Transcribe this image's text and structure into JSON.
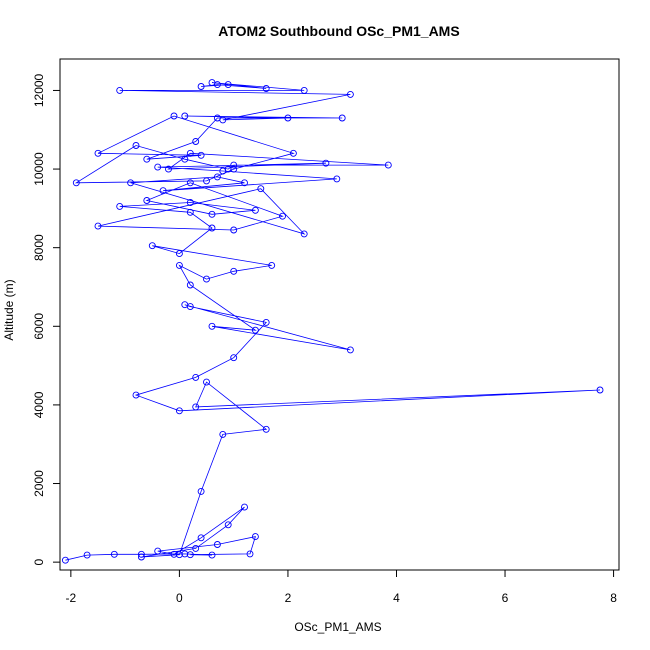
{
  "chart_data": {
    "type": "line",
    "title": "ATOM2 Southbound OSc_PM1_AMS",
    "xlabel": "OSc_PM1_AMS",
    "ylabel": "Altitude (m)",
    "xlim": [
      -2.2,
      8.1
    ],
    "ylim": [
      -200,
      12800
    ],
    "xticks": [
      -2,
      0,
      2,
      4,
      6,
      8
    ],
    "yticks": [
      0,
      2000,
      4000,
      6000,
      8000,
      10000,
      12000
    ],
    "xtick_labels": [
      "-2",
      "0",
      "2",
      "4",
      "6",
      "8"
    ],
    "ytick_labels": [
      "0",
      "2000",
      "4000",
      "6000",
      "8000",
      "10000",
      "12000"
    ],
    "grid": false,
    "marker": "open-circle",
    "series_color": "#0000ff",
    "series": [
      {
        "x": [
          -2.1,
          -1.7,
          -1.2,
          -0.7,
          0.1,
          0.6,
          0.2,
          1.3,
          1.4,
          0.7,
          -0.4,
          -0.1,
          0.4,
          1.2,
          0.9,
          0.3,
          -0.7,
          0.0,
          0.4,
          0.8,
          1.6,
          0.5,
          0.3,
          7.75,
          0.0,
          -0.8,
          0.3,
          1.0,
          1.6,
          0.2,
          0.1,
          3.15,
          0.6,
          1.4,
          0.2,
          0.0,
          0.5,
          1.0,
          1.7,
          -0.5,
          0.0,
          0.6,
          0.2,
          -1.1,
          0.2,
          1.4,
          0.6,
          -0.6,
          0.2,
          1.9,
          1.0,
          -1.5,
          1.5,
          2.3,
          -0.9,
          0.7,
          1.2,
          -0.3,
          2.9,
          0.8,
          -0.4,
          2.7,
          -0.2,
          0.2,
          3.85,
          1.0,
          0.9,
          0.1,
          -0.8,
          -1.9,
          0.5,
          1.0,
          2.1,
          -0.1,
          -1.5,
          0.4,
          -0.6,
          0.3,
          0.7,
          3.0,
          0.1,
          2.0,
          0.8,
          3.15,
          -1.1,
          2.3,
          0.6,
          1.6,
          0.7,
          0.4,
          0.9
        ],
        "y": [
          50,
          180,
          200,
          200,
          210,
          180,
          190,
          210,
          650,
          450,
          280,
          200,
          620,
          1400,
          950,
          350,
          130,
          190,
          1800,
          3250,
          3380,
          4580,
          3950,
          4380,
          3850,
          4250,
          4700,
          5200,
          6100,
          6500,
          6550,
          5400,
          6000,
          5900,
          7050,
          7550,
          7200,
          7400,
          7550,
          8050,
          7850,
          8500,
          8900,
          9050,
          9150,
          8950,
          8850,
          9200,
          9650,
          8800,
          8450,
          8550,
          9500,
          8350,
          9650,
          9800,
          9650,
          9450,
          9750,
          9950,
          10050,
          10150,
          10000,
          10400,
          10100,
          10100,
          10000,
          10250,
          10600,
          9650,
          9700,
          10000,
          10400,
          11350,
          10400,
          10350,
          10250,
          10700,
          11300,
          11300,
          11350,
          11300,
          11250,
          11900,
          12000,
          12000,
          12200,
          12050,
          12150,
          12100,
          12150
        ]
      }
    ]
  }
}
